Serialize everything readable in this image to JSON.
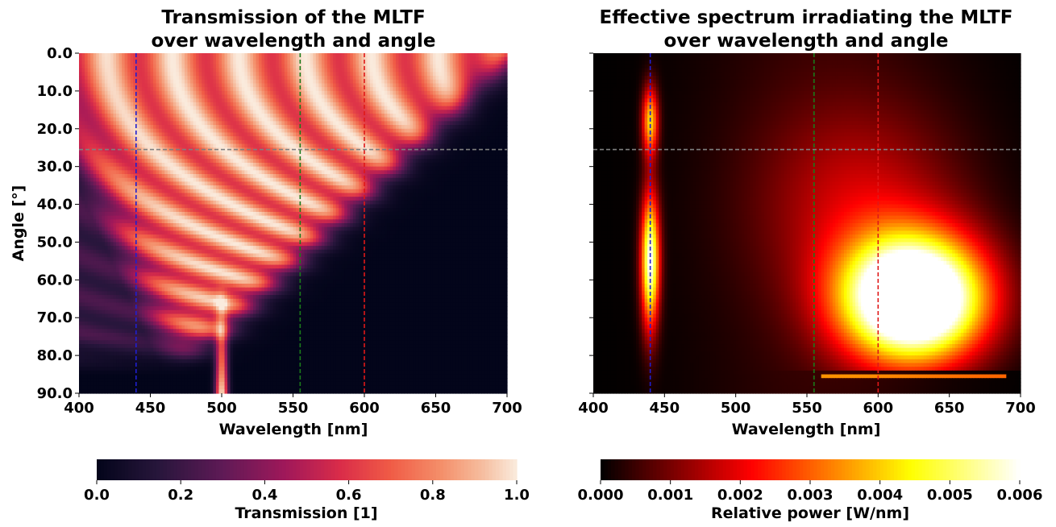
{
  "chart_data": [
    {
      "type": "heatmap",
      "title_lines": [
        "Transmission of the MLTF",
        "over wavelength and angle"
      ],
      "xlabel": "Wavelength [nm]",
      "ylabel": "Angle [°]",
      "xlim": [
        400,
        700
      ],
      "ylim": [
        0,
        90
      ],
      "x_ticks": [
        "400",
        "450",
        "500",
        "550",
        "600",
        "650",
        "700"
      ],
      "y_ticks": [
        "0.0",
        "10.0",
        "20.0",
        "30.0",
        "40.0",
        "50.0",
        "60.0",
        "70.0",
        "80.0",
        "90.0"
      ],
      "colormap": "rocket",
      "colorbar": {
        "label": "Transmission [1]",
        "range": [
          0,
          1
        ],
        "ticks": [
          "0.0",
          "0.2",
          "0.4",
          "0.6",
          "0.8",
          "1.0"
        ]
      },
      "reference_lines": {
        "vertical": [
          {
            "x": 440,
            "color": "#1f1fd0"
          },
          {
            "x": 555,
            "color": "#1a7a1a"
          },
          {
            "x": 600,
            "color": "#e01818"
          }
        ],
        "horizontal": [
          {
            "y": 25.5,
            "color": "#808080"
          }
        ]
      }
    },
    {
      "type": "heatmap",
      "title_lines": [
        "Effective spectrum irradiating the MLTF",
        "over wavelength and angle"
      ],
      "xlabel": "Wavelength [nm]",
      "xlim": [
        400,
        700
      ],
      "ylim": [
        0,
        90
      ],
      "x_ticks": [
        "400",
        "450",
        "500",
        "550",
        "600",
        "650",
        "700"
      ],
      "colormap": "hot",
      "colorbar": {
        "label": "Relative power [W/nm]",
        "range": [
          0,
          0.006
        ],
        "ticks": [
          "0.000",
          "0.001",
          "0.002",
          "0.003",
          "0.004",
          "0.005",
          "0.006"
        ]
      },
      "reference_lines": {
        "vertical": [
          {
            "x": 440,
            "color": "#1f1fd0"
          },
          {
            "x": 555,
            "color": "#1a7a1a"
          },
          {
            "x": 600,
            "color": "#e01818"
          }
        ],
        "horizontal": [
          {
            "y": 25.5,
            "color": "#808080"
          }
        ]
      }
    }
  ]
}
